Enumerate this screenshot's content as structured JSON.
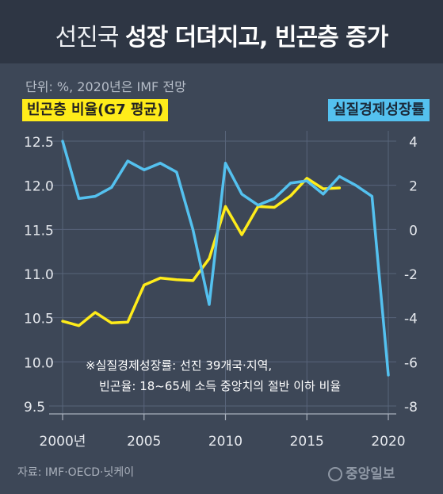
{
  "title": {
    "light": "선진국",
    "bold": "성장 더뎌지고, 빈곤층 증가"
  },
  "unit_note": "단위: %, 2020년은 IMF 전망",
  "legend_left": "빈곤층 비율(G7 평균)",
  "legend_right": "실질경제성장률",
  "footnote": {
    "line1": "※실질경제성장률: 선진 39개국·지역,",
    "line2": "빈곤율: 18~65세 소득 중앙치의 절반 이하 비율"
  },
  "source": "자료: IMF·OECD·닛케이",
  "logo": "중앙일보",
  "chart_data": {
    "type": "line",
    "x_ticks": [
      2000,
      2005,
      2010,
      2015,
      2020
    ],
    "x_tick_labels": [
      "2000년",
      "2005",
      "2010",
      "2015",
      "2020"
    ],
    "xlim": [
      2000,
      2020
    ],
    "left_axis": {
      "ticks": [
        "12.5",
        "12.0",
        "11.5",
        "11.0",
        "10.5",
        "10.0",
        "9.5"
      ],
      "ylim": [
        9.5,
        12.5
      ]
    },
    "right_axis": {
      "ticks": [
        "4",
        "2",
        "0",
        "-2",
        "-4",
        "-6",
        "-8"
      ],
      "ylim": [
        -8,
        4
      ]
    },
    "grid": true,
    "colors": {
      "poverty": "#ffec1a",
      "growth": "#54c1ef",
      "grid": "#58647a",
      "tick": "#e6e9ee"
    },
    "series": [
      {
        "name": "빈곤층 비율(G7 평균)",
        "axis": "left",
        "x": [
          2000,
          2001,
          2002,
          2003,
          2004,
          2005,
          2006,
          2007,
          2008,
          2009,
          2010,
          2011,
          2012,
          2013,
          2014,
          2015,
          2016,
          2017
        ],
        "values": [
          10.46,
          10.41,
          10.56,
          10.44,
          10.45,
          10.87,
          10.95,
          10.93,
          10.92,
          11.17,
          11.76,
          11.44,
          11.76,
          11.75,
          11.88,
          12.08,
          11.96,
          11.97
        ]
      },
      {
        "name": "실질경제성장률",
        "axis": "right",
        "x": [
          2000,
          2001,
          2002,
          2003,
          2004,
          2005,
          2006,
          2007,
          2008,
          2009,
          2010,
          2011,
          2012,
          2013,
          2014,
          2015,
          2016,
          2017,
          2018,
          2019,
          2020
        ],
        "values": [
          4.0,
          1.4,
          1.5,
          1.9,
          3.1,
          2.7,
          3.0,
          2.6,
          0.0,
          -3.4,
          3.0,
          1.6,
          1.1,
          1.4,
          2.1,
          2.2,
          1.6,
          2.4,
          2.0,
          1.5,
          -6.6
        ]
      }
    ]
  }
}
